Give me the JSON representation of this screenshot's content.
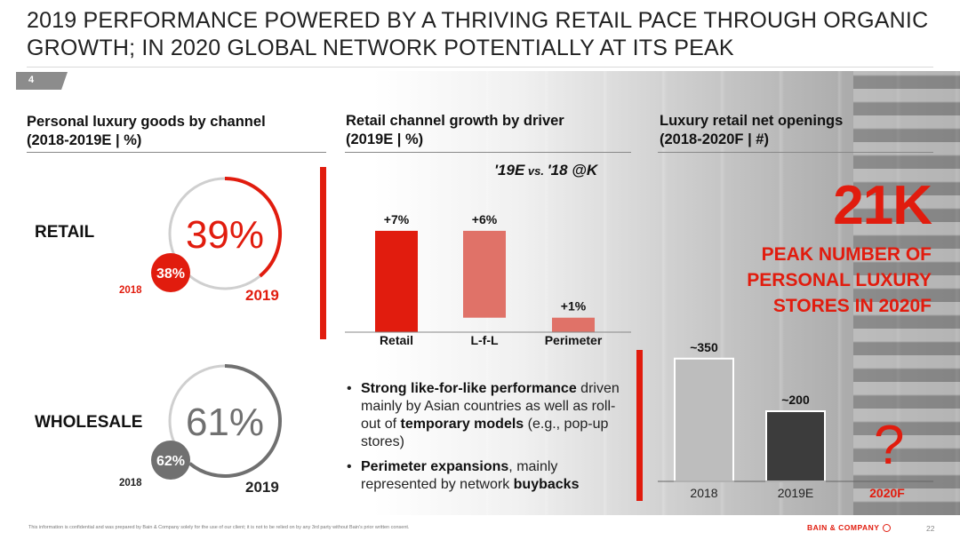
{
  "slide": {
    "title": "2019 PERFORMANCE POWERED BY A THRIVING RETAIL PACE THROUGH ORGANIC GROWTH; IN 2020 GLOBAL NETWORK POTENTIALLY AT ITS PEAK",
    "page_tab": "4",
    "page_number": "22",
    "footer_note": "This information is confidential and was prepared by Bain & Company solely for the use of our client; it is not to be relied on by any 3rd party without Bain's prior written consent.",
    "logo_text": "BAIN & COMPANY",
    "colors": {
      "accent": "#e11c0e",
      "light_red": "#e07268",
      "dark_gray": "#3c3c3c",
      "mid_gray": "#707070",
      "ring_gray": "#cfcfcf"
    }
  },
  "left": {
    "heading_line1": "Personal luxury goods by channel",
    "heading_line2": "(2018-2019E | %)"
  },
  "middle": {
    "heading_line1": "Retail channel growth by driver",
    "heading_line2": "(2019E | %)",
    "subtitle_main": "'19E",
    "subtitle_vs": " vs. ",
    "subtitle_tail": "'18 @K",
    "bullets": [
      {
        "b1": "Strong like-for-like performance",
        "t1": " driven mainly by Asian countries as well as roll-out of ",
        "b2": "temporary models",
        "t2": " (e.g., pop-up stores)"
      },
      {
        "b1": "Perimeter expansions",
        "t1": ", mainly represented by network ",
        "b2": "buybacks",
        "t2": ""
      }
    ]
  },
  "right": {
    "heading_line1": "Luxury retail net openings",
    "heading_line2": "(2018-2020F | #)",
    "big_number": "21K",
    "peak_line1": "PEAK NUMBER OF",
    "peak_line2": "PERSONAL LUXURY",
    "peak_line3": "STORES IN 2020F",
    "question_mark": "?"
  },
  "chart_data": [
    {
      "type": "pie",
      "name": "RETAIL",
      "categories": [
        "2018",
        "2019"
      ],
      "values": [
        38,
        39
      ],
      "labels": [
        "38%",
        "39%"
      ],
      "row_label": "RETAIL"
    },
    {
      "type": "pie",
      "name": "WHOLESALE",
      "categories": [
        "2018",
        "2019"
      ],
      "values": [
        62,
        61
      ],
      "labels": [
        "62%",
        "61%"
      ],
      "row_label": "WHOLESALE"
    },
    {
      "type": "bar",
      "title": "'19E vs. '18 @K",
      "categories": [
        "Retail",
        "L-f-L",
        "Perimeter"
      ],
      "values": [
        7,
        6,
        1
      ],
      "labels": [
        "+7%",
        "+6%",
        "+1%"
      ],
      "waterfall": true
    },
    {
      "type": "bar",
      "categories": [
        "2018",
        "2019E",
        "2020F"
      ],
      "values": [
        350,
        200,
        null
      ],
      "labels": [
        "~350",
        "~200",
        ""
      ]
    }
  ]
}
